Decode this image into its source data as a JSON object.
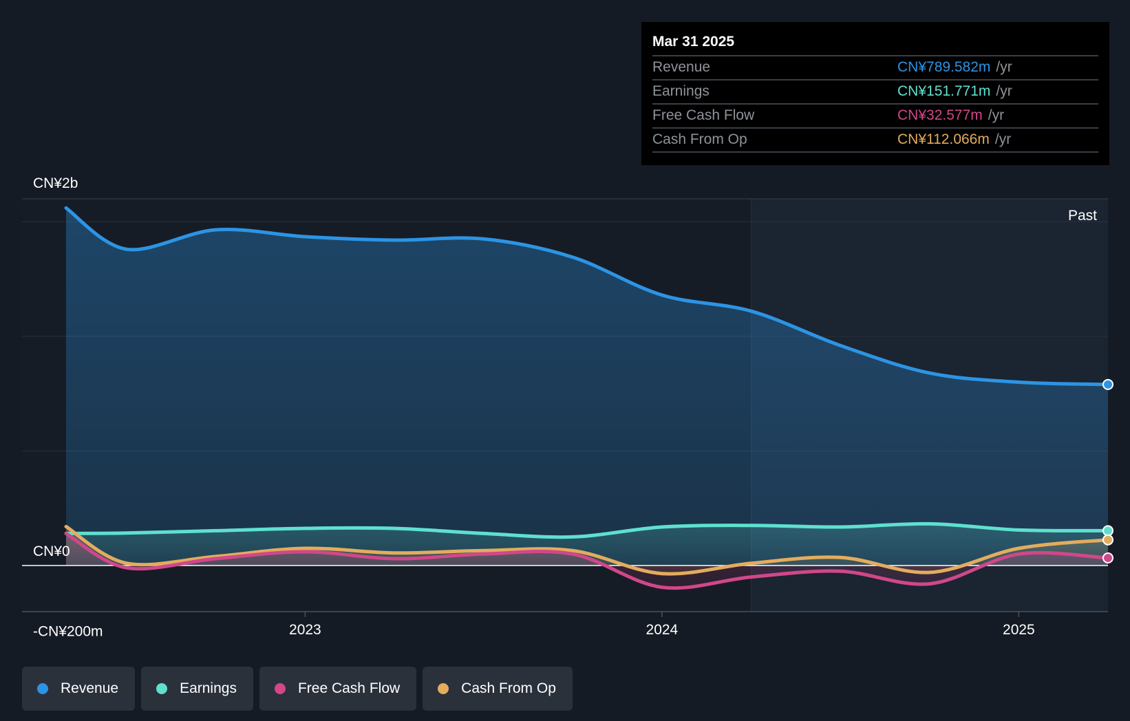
{
  "colors": {
    "background": "#151b24",
    "revenue": "#2c94e4",
    "earnings": "#5fe0cf",
    "fcf": "#d1478a",
    "cfo": "#e3ac5e",
    "grid": "#2a313b",
    "axis_text": "#ffffff"
  },
  "tooltip": {
    "date": "Mar 31 2025",
    "rows": [
      {
        "label": "Revenue",
        "value": "CN¥789.582m",
        "unit": "/yr",
        "color": "#2c94e4"
      },
      {
        "label": "Earnings",
        "value": "CN¥151.771m",
        "unit": "/yr",
        "color": "#5fe0cf"
      },
      {
        "label": "Free Cash Flow",
        "value": "CN¥32.577m",
        "unit": "/yr",
        "color": "#d1478a"
      },
      {
        "label": "Cash From Op",
        "value": "CN¥112.066m",
        "unit": "/yr",
        "color": "#e3ac5e"
      }
    ]
  },
  "legend": [
    {
      "label": "Revenue",
      "color": "#2c94e4"
    },
    {
      "label": "Earnings",
      "color": "#5fe0cf"
    },
    {
      "label": "Free Cash Flow",
      "color": "#d1478a"
    },
    {
      "label": "Cash From Op",
      "color": "#e3ac5e"
    }
  ],
  "chart_data": {
    "type": "area",
    "title": "",
    "y_unit": "CN¥ millions",
    "ylim": [
      -200,
      1600
    ],
    "xlim": [
      2022.33,
      2025.25
    ],
    "x_ticks": [
      {
        "value": 2023,
        "label": "2023"
      },
      {
        "value": 2024,
        "label": "2024"
      },
      {
        "value": 2025,
        "label": "2025"
      }
    ],
    "y_labels": [
      {
        "value": 1600,
        "label": "CN¥2b"
      },
      {
        "value": 0,
        "label": "CN¥0"
      },
      {
        "value": -200,
        "label": "-CN¥200m"
      }
    ],
    "y_gridlines": [
      1500,
      1000,
      500
    ],
    "past_label": "Past",
    "past_start": 2024.25,
    "series": [
      {
        "name": "Revenue",
        "key": "revenue",
        "x": [
          2022.33,
          2022.5,
          2022.75,
          2023.0,
          2023.25,
          2023.5,
          2023.75,
          2024.0,
          2024.25,
          2024.5,
          2024.75,
          2025.0,
          2025.25
        ],
        "values": [
          1560,
          1380,
          1465,
          1435,
          1420,
          1425,
          1345,
          1180,
          1110,
          960,
          840,
          800,
          790
        ]
      },
      {
        "name": "Earnings",
        "key": "earnings",
        "x": [
          2022.33,
          2022.5,
          2022.75,
          2023.0,
          2023.25,
          2023.5,
          2023.75,
          2024.0,
          2024.25,
          2024.5,
          2024.75,
          2025.0,
          2025.25
        ],
        "values": [
          140,
          142,
          152,
          162,
          162,
          140,
          125,
          168,
          175,
          168,
          182,
          155,
          152
        ]
      },
      {
        "name": "Free Cash Flow",
        "key": "fcf",
        "x": [
          2022.33,
          2022.5,
          2022.75,
          2023.0,
          2023.25,
          2023.5,
          2023.75,
          2024.0,
          2024.25,
          2024.5,
          2024.75,
          2025.0,
          2025.25
        ],
        "values": [
          140,
          -10,
          30,
          60,
          30,
          50,
          50,
          -95,
          -50,
          -25,
          -80,
          50,
          33
        ]
      },
      {
        "name": "Cash From Op",
        "key": "cfo",
        "x": [
          2022.33,
          2022.5,
          2022.75,
          2023.0,
          2023.25,
          2023.5,
          2023.75,
          2024.0,
          2024.25,
          2024.5,
          2024.75,
          2025.0,
          2025.25
        ],
        "values": [
          170,
          10,
          40,
          75,
          55,
          65,
          65,
          -35,
          10,
          35,
          -30,
          75,
          112
        ]
      }
    ]
  }
}
